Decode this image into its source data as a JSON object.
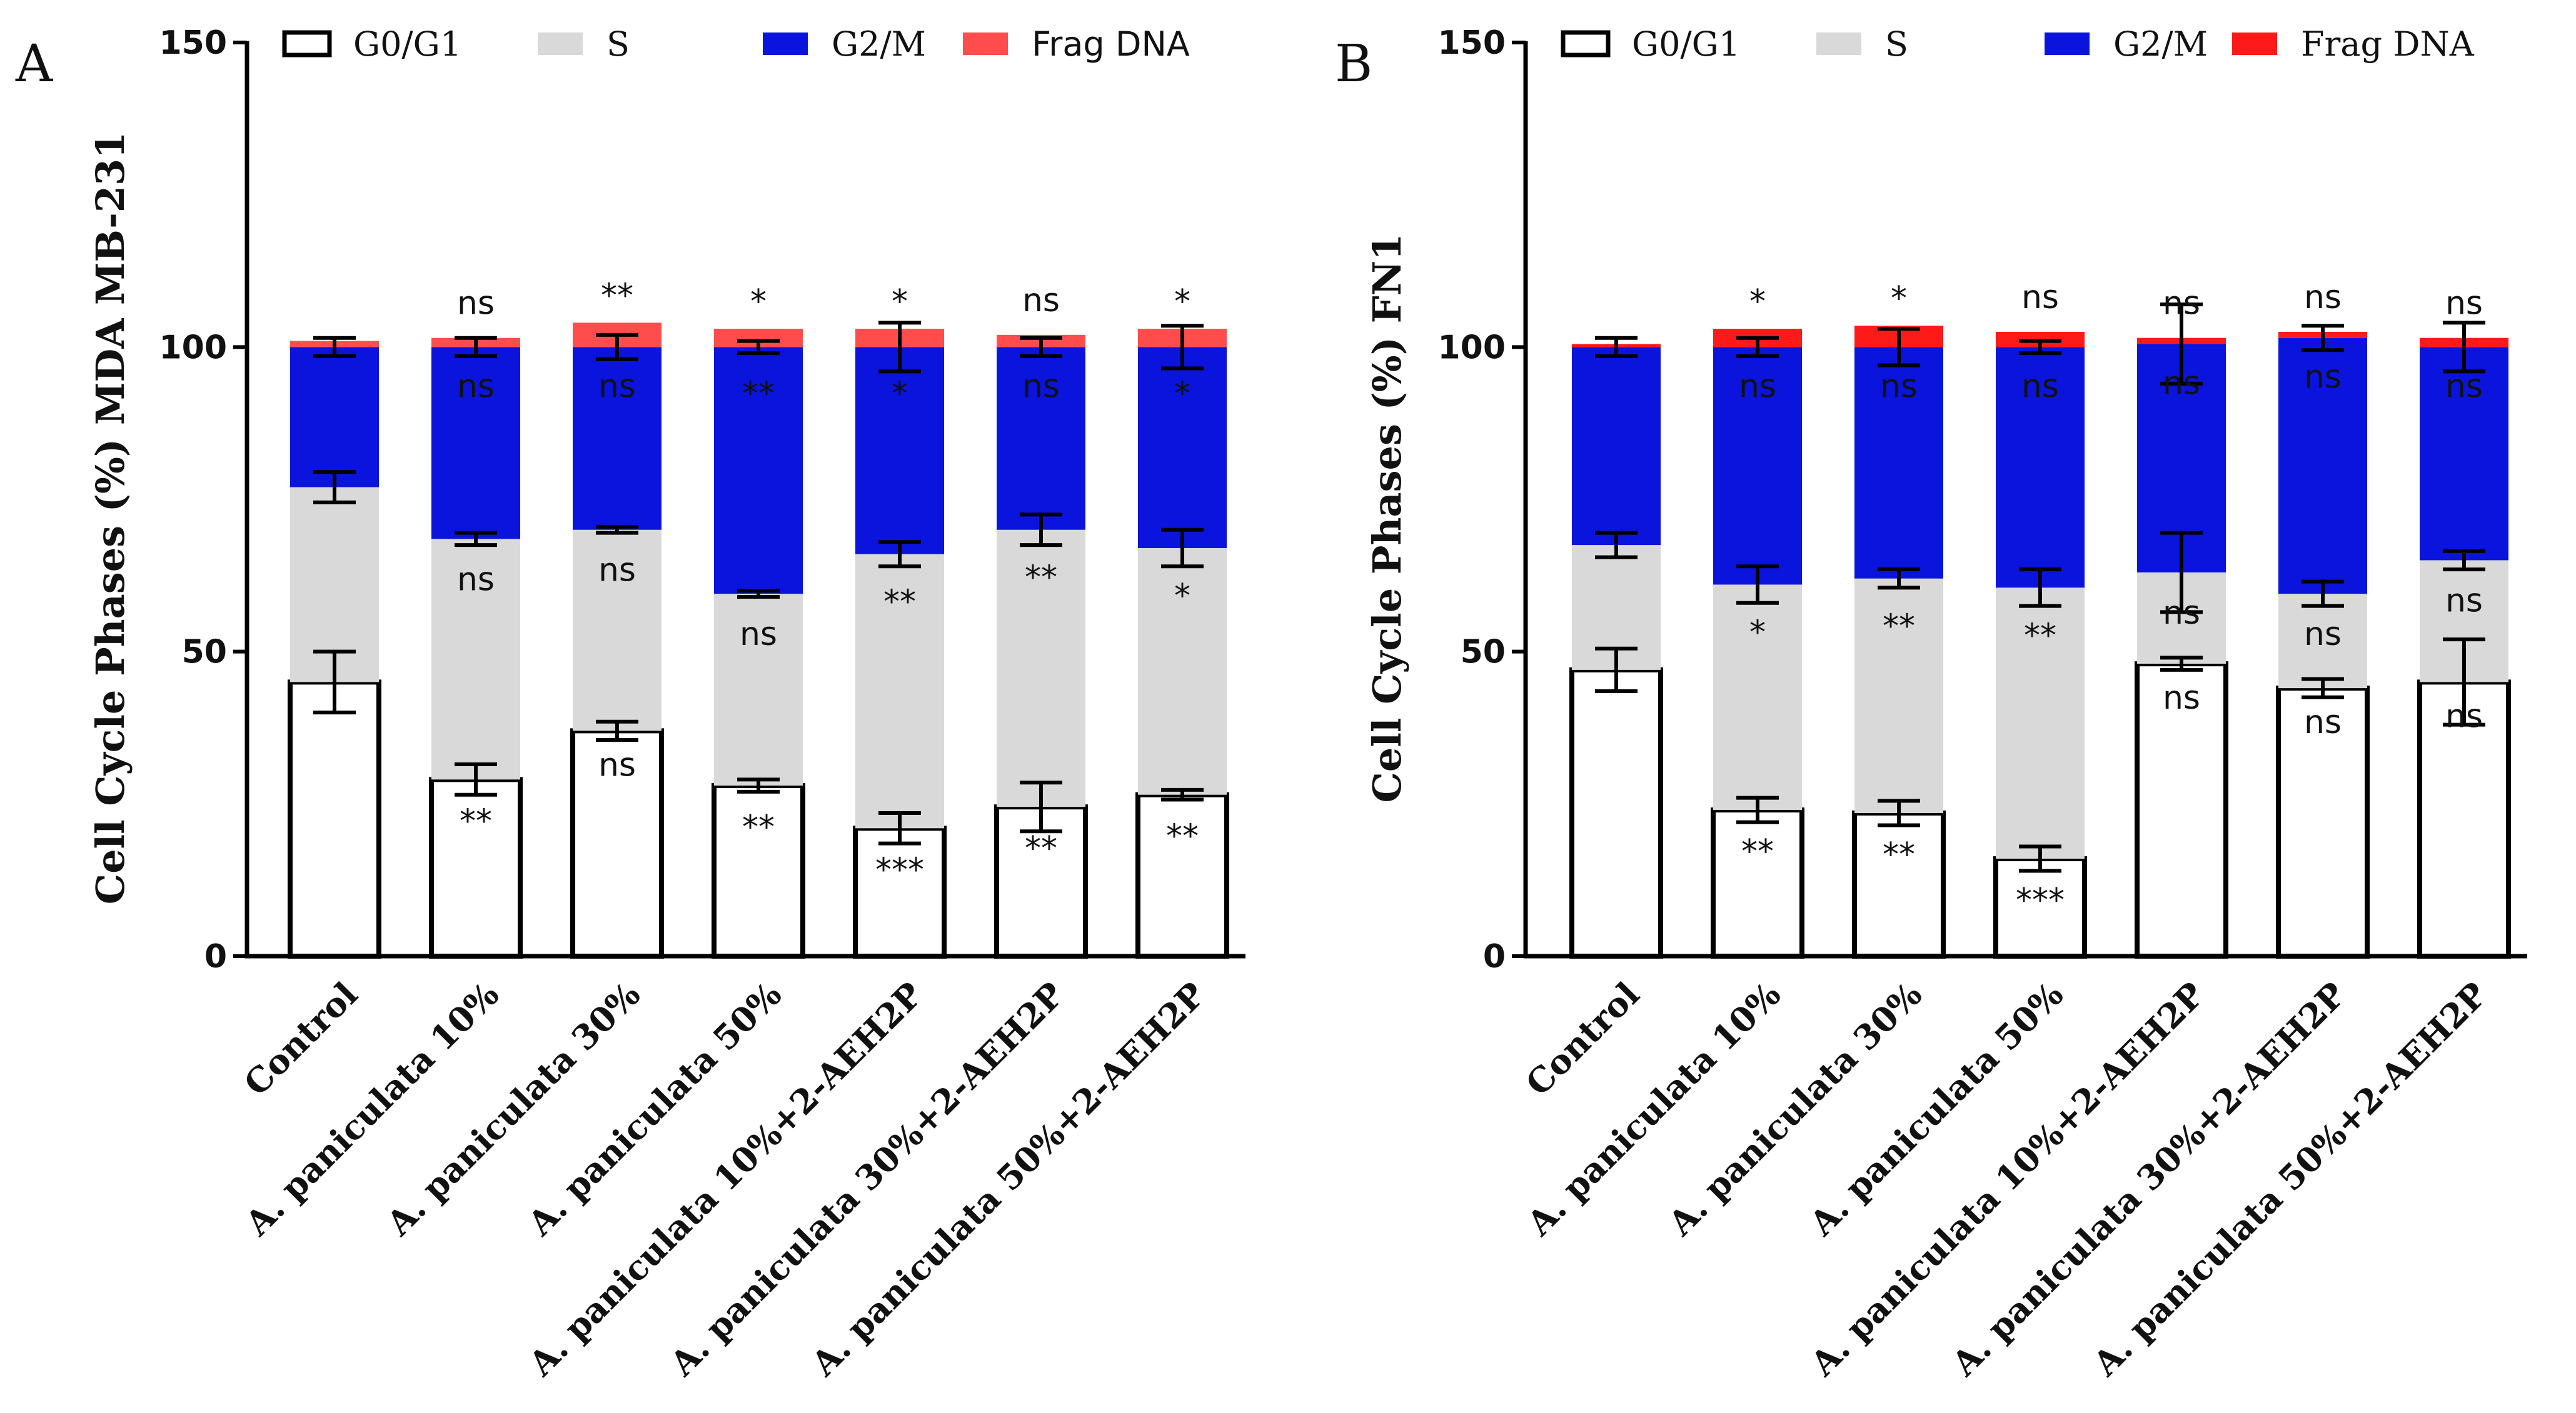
{
  "chart_data": [
    {
      "type": "bar",
      "stacked": true,
      "panel": "A",
      "title": "",
      "xlabel": "",
      "ylabel": "Cell Cycle Phases (%) MDA MB-231",
      "ylim": [
        0,
        150
      ],
      "yticks": [
        0,
        50,
        100,
        150
      ],
      "categories": [
        "Control",
        "A. paniculata 10%",
        "A. paniculata 30%",
        "A. paniculata 50%",
        "A. paniculata 10%+2-AEH2P",
        "A. paniculata 30%+2-AEH2P",
        "A. paniculata 50%+2-AEH2P"
      ],
      "series": [
        {
          "name": "G0/G1",
          "color": "#ffffff",
          "values": [
            45,
            29,
            37,
            28,
            21,
            24.5,
            26.5
          ],
          "errors": [
            5,
            2.5,
            1.5,
            1,
            2.5,
            4,
            0.8
          ]
        },
        {
          "name": "S",
          "color": "#d9d9d9",
          "values": [
            32,
            39.5,
            33,
            31.5,
            45,
            45.5,
            40.5
          ],
          "errors": [
            2.5,
            1,
            0.5,
            0.5,
            2,
            2.5,
            3
          ]
        },
        {
          "name": "G2/M",
          "color": "#0a14dc",
          "values": [
            23,
            31.5,
            30,
            40.5,
            34,
            30,
            33
          ],
          "errors": [
            1.5,
            1.5,
            2,
            1,
            4,
            1.5,
            3.5
          ]
        },
        {
          "name": "Frag DNA",
          "color": "#ff4d4d",
          "values": [
            1,
            1.5,
            4,
            3,
            3,
            2,
            3
          ],
          "errors": [
            0,
            0,
            0,
            0,
            0,
            0,
            0
          ]
        }
      ],
      "annotations": {
        "G0/G1": [
          "",
          "**",
          "ns",
          "**",
          "***",
          "**",
          "**"
        ],
        "S": [
          "",
          "ns",
          "ns",
          "ns",
          "**",
          "**",
          "*"
        ],
        "G2/M": [
          "",
          "ns",
          "ns",
          "**",
          "*",
          "ns",
          "*"
        ],
        "Frag DNA": [
          "",
          "ns",
          "**",
          "*",
          "*",
          "ns",
          "*"
        ]
      },
      "legend": [
        "G0/G1",
        "S",
        "G2/M",
        "Frag DNA"
      ]
    },
    {
      "type": "bar",
      "stacked": true,
      "panel": "B",
      "title": "",
      "xlabel": "",
      "ylabel": "Cell Cycle Phases (%) FN1",
      "ylim": [
        0,
        150
      ],
      "yticks": [
        0,
        50,
        100,
        150
      ],
      "categories": [
        "Control",
        "A. paniculata 10%",
        "A. paniculata 30%",
        "A. paniculata 50%",
        "A. paniculata 10%+2-AEH2P",
        "A. paniculata 30%+2-AEH2P",
        "A. paniculata 50%+2-AEH2P"
      ],
      "series": [
        {
          "name": "G0/G1",
          "color": "#ffffff",
          "values": [
            47,
            24,
            23.5,
            16,
            48,
            44,
            45
          ],
          "errors": [
            3.5,
            2,
            2,
            2,
            1,
            1.5,
            7
          ]
        },
        {
          "name": "S",
          "color": "#d9d9d9",
          "values": [
            20.5,
            37,
            38.5,
            44.5,
            15,
            15.5,
            20
          ],
          "errors": [
            2,
            3,
            1.5,
            3,
            6.5,
            2,
            1.5
          ]
        },
        {
          "name": "G2/M",
          "color": "#0a14dc",
          "values": [
            32.5,
            39,
            38,
            39.5,
            37.5,
            42,
            35
          ],
          "errors": [
            1.5,
            1.5,
            3,
            1,
            6.5,
            2,
            4
          ]
        },
        {
          "name": "Frag DNA",
          "color": "#ff1a1a",
          "values": [
            0.5,
            3,
            3.5,
            2.5,
            1,
            1,
            1.5
          ],
          "errors": [
            0,
            0,
            0,
            0,
            0,
            0,
            0
          ]
        }
      ],
      "annotations": {
        "G0/G1": [
          "",
          "**",
          "**",
          "***",
          "ns",
          "ns",
          "ns"
        ],
        "S": [
          "",
          "*",
          "**",
          "**",
          "ns",
          "ns",
          "ns"
        ],
        "G2/M": [
          "",
          "ns",
          "ns",
          "ns",
          "ns",
          "ns",
          "ns"
        ],
        "Frag DNA": [
          "",
          "*",
          "*",
          "ns",
          "ns",
          "ns",
          "ns"
        ]
      },
      "legend": [
        "G0/G1",
        "S",
        "G2/M",
        "Frag DNA"
      ]
    }
  ]
}
